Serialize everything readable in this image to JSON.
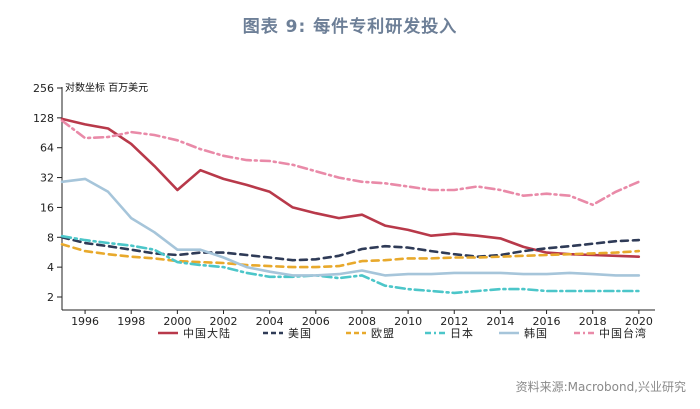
{
  "title": "图表 9:  每件专利研发投入",
  "source": "资料来源:Macrobond,兴业研究",
  "chart_data": {
    "type": "line",
    "y_scale": "log2",
    "ylabel": "对数坐标  百万美元",
    "ylim": [
      2,
      256
    ],
    "yticks": [
      2,
      4,
      8,
      16,
      32,
      64,
      128,
      256
    ],
    "xlim": [
      1995,
      2020.7
    ],
    "xticks": [
      1996,
      1998,
      2000,
      2002,
      2004,
      2006,
      2008,
      2010,
      2012,
      2014,
      2016,
      2018,
      2020
    ],
    "x": [
      1995,
      1996,
      1997,
      1998,
      1999,
      2000,
      2001,
      2002,
      2003,
      2004,
      2005,
      2006,
      2007,
      2008,
      2009,
      2010,
      2011,
      2012,
      2013,
      2014,
      2015,
      2016,
      2017,
      2018,
      2019,
      2020
    ],
    "legend_position": "bottom",
    "grid": false,
    "series": [
      {
        "name": "中国大陆",
        "color": "#b8394a",
        "style": "solid",
        "values": [
          125,
          110,
          100,
          70,
          42,
          24,
          38,
          31,
          27,
          23,
          16,
          14,
          12.5,
          13.5,
          10.5,
          9.5,
          8.3,
          8.7,
          8.3,
          7.8,
          6.4,
          5.6,
          5.4,
          5.3,
          5.2,
          5.1
        ]
      },
      {
        "name": "美国",
        "color": "#2f3b57",
        "style": "dash",
        "values": [
          8,
          7,
          6.5,
          6,
          5.5,
          5.3,
          5.6,
          5.6,
          5.3,
          5,
          4.7,
          4.8,
          5.2,
          6.1,
          6.5,
          6.3,
          5.8,
          5.4,
          5.1,
          5.3,
          5.8,
          6.2,
          6.5,
          6.9,
          7.3,
          7.5
        ]
      },
      {
        "name": "欧盟",
        "color": "#e8a92c",
        "style": "dash",
        "values": [
          6.8,
          5.8,
          5.4,
          5.1,
          4.9,
          4.6,
          4.5,
          4.4,
          4.2,
          4.1,
          4,
          4,
          4.1,
          4.6,
          4.7,
          4.9,
          4.9,
          5,
          5,
          5.1,
          5.2,
          5.3,
          5.4,
          5.5,
          5.6,
          5.8
        ]
      },
      {
        "name": "日本",
        "color": "#4cc6c9",
        "style": "dashdot",
        "values": [
          8.2,
          7.5,
          7,
          6.6,
          6,
          4.5,
          4.2,
          4,
          3.5,
          3.2,
          3.2,
          3.3,
          3.1,
          3.3,
          2.6,
          2.4,
          2.3,
          2.2,
          2.3,
          2.4,
          2.4,
          2.3,
          2.3,
          2.3,
          2.3,
          2.3
        ]
      },
      {
        "name": "韩国",
        "color": "#a6c5da",
        "style": "solid",
        "values": [
          29,
          31,
          23,
          12.5,
          9,
          6,
          6,
          5,
          4,
          3.6,
          3.3,
          3.3,
          3.4,
          3.7,
          3.3,
          3.4,
          3.4,
          3.5,
          3.5,
          3.5,
          3.4,
          3.4,
          3.5,
          3.4,
          3.3,
          3.3
        ]
      },
      {
        "name": "中国台湾",
        "color": "#e98aa8",
        "style": "dashdot",
        "values": [
          120,
          80,
          82,
          92,
          86,
          76,
          62,
          53,
          48,
          47,
          43,
          37,
          32,
          29,
          28,
          26,
          24,
          24,
          26,
          24,
          21,
          22,
          21,
          17,
          23,
          29
        ]
      }
    ]
  }
}
